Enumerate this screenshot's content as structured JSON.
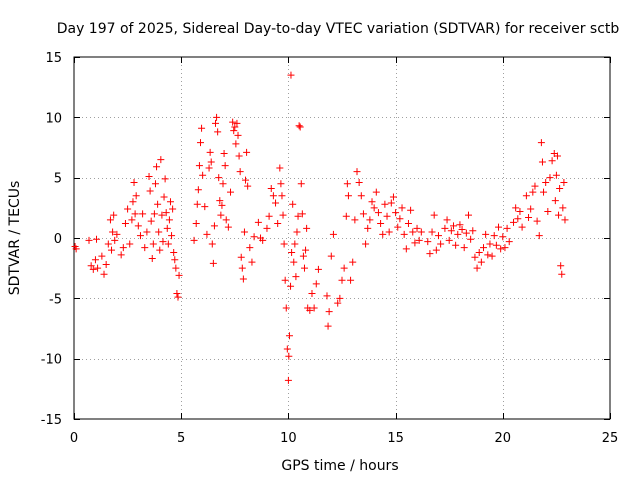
{
  "chart_data": {
    "type": "scatter",
    "title": "Day 197 of 2025, Sidereal Day-to-day VTEC variation (SDTVAR) for receiver sctb",
    "xlabel": "GPS time / hours",
    "ylabel": "SDTVAR / TECUs",
    "xlim": [
      0,
      25
    ],
    "ylim": [
      -15,
      15
    ],
    "x_ticks": [
      0,
      5,
      10,
      15,
      20,
      25
    ],
    "y_ticks": [
      -15,
      -10,
      -5,
      0,
      5,
      10,
      15
    ],
    "x_tick_labels": [
      "0",
      "5",
      "10",
      "15",
      "20",
      "25"
    ],
    "y_tick_labels": [
      "-15",
      "-10",
      "-5",
      "0",
      "5",
      "10",
      "15"
    ],
    "grid": true,
    "marker": "+",
    "color": "#ff0000",
    "series": [
      {
        "name": "SDTVAR",
        "points": [
          [
            0.05,
            -0.7
          ],
          [
            0.1,
            -0.9
          ],
          [
            0.7,
            -0.2
          ],
          [
            0.8,
            -2.3
          ],
          [
            0.9,
            -2.6
          ],
          [
            1.0,
            -1.8
          ],
          [
            1.05,
            -0.1
          ],
          [
            1.1,
            -2.5
          ],
          [
            1.3,
            -1.5
          ],
          [
            1.4,
            -3.0
          ],
          [
            1.5,
            -2.2
          ],
          [
            1.6,
            -0.5
          ],
          [
            1.7,
            1.5
          ],
          [
            1.75,
            -1.0
          ],
          [
            1.8,
            0.5
          ],
          [
            1.85,
            1.9
          ],
          [
            1.9,
            -0.2
          ],
          [
            2.0,
            0.3
          ],
          [
            2.2,
            -1.4
          ],
          [
            2.3,
            -0.8
          ],
          [
            2.4,
            1.2
          ],
          [
            2.5,
            2.4
          ],
          [
            2.6,
            -0.5
          ],
          [
            2.7,
            1.5
          ],
          [
            2.75,
            3.0
          ],
          [
            2.8,
            4.6
          ],
          [
            2.85,
            2.0
          ],
          [
            2.9,
            3.5
          ],
          [
            3.0,
            1.0
          ],
          [
            3.1,
            0.2
          ],
          [
            3.2,
            2.0
          ],
          [
            3.3,
            -0.8
          ],
          [
            3.4,
            0.5
          ],
          [
            3.5,
            5.1
          ],
          [
            3.55,
            3.9
          ],
          [
            3.6,
            1.4
          ],
          [
            3.65,
            -1.7
          ],
          [
            3.7,
            -0.5
          ],
          [
            3.75,
            2.0
          ],
          [
            3.8,
            4.5
          ],
          [
            3.85,
            5.9
          ],
          [
            3.9,
            2.8
          ],
          [
            3.95,
            0.5
          ],
          [
            4.0,
            -1.0
          ],
          [
            4.05,
            6.5
          ],
          [
            4.1,
            1.9
          ],
          [
            4.15,
            -0.3
          ],
          [
            4.2,
            3.4
          ],
          [
            4.25,
            4.9
          ],
          [
            4.3,
            2.1
          ],
          [
            4.35,
            0.8
          ],
          [
            4.4,
            -0.5
          ],
          [
            4.45,
            1.5
          ],
          [
            4.5,
            3.0
          ],
          [
            4.55,
            0.2
          ],
          [
            4.6,
            2.4
          ],
          [
            4.65,
            -1.2
          ],
          [
            4.7,
            -1.8
          ],
          [
            4.75,
            -2.5
          ],
          [
            4.8,
            -4.6
          ],
          [
            4.85,
            -4.9
          ],
          [
            4.9,
            -3.1
          ],
          [
            5.6,
            -0.2
          ],
          [
            5.7,
            1.2
          ],
          [
            5.75,
            2.8
          ],
          [
            5.8,
            4.0
          ],
          [
            5.85,
            6.0
          ],
          [
            5.9,
            7.9
          ],
          [
            5.95,
            9.1
          ],
          [
            6.0,
            5.2
          ],
          [
            6.1,
            2.6
          ],
          [
            6.2,
            0.3
          ],
          [
            6.3,
            5.8
          ],
          [
            6.35,
            7.1
          ],
          [
            6.4,
            6.3
          ],
          [
            6.45,
            -0.5
          ],
          [
            6.5,
            -2.1
          ],
          [
            6.55,
            1.0
          ],
          [
            6.6,
            9.5
          ],
          [
            6.65,
            10.0
          ],
          [
            6.7,
            8.8
          ],
          [
            6.75,
            5.0
          ],
          [
            6.8,
            3.1
          ],
          [
            6.85,
            1.9
          ],
          [
            6.9,
            2.7
          ],
          [
            6.95,
            4.5
          ],
          [
            7.0,
            7.0
          ],
          [
            7.05,
            6.0
          ],
          [
            7.1,
            1.5
          ],
          [
            7.2,
            0.9
          ],
          [
            7.3,
            3.8
          ],
          [
            7.4,
            9.6
          ],
          [
            7.45,
            8.9
          ],
          [
            7.5,
            9.2
          ],
          [
            7.55,
            7.8
          ],
          [
            7.6,
            9.5
          ],
          [
            7.65,
            8.5
          ],
          [
            7.7,
            6.8
          ],
          [
            7.75,
            5.5
          ],
          [
            7.8,
            -1.6
          ],
          [
            7.85,
            -2.5
          ],
          [
            7.9,
            -3.4
          ],
          [
            7.95,
            0.5
          ],
          [
            8.0,
            4.8
          ],
          [
            8.05,
            7.1
          ],
          [
            8.1,
            4.3
          ],
          [
            8.2,
            -0.8
          ],
          [
            8.3,
            -2.0
          ],
          [
            8.4,
            0.1
          ],
          [
            8.6,
            1.3
          ],
          [
            8.7,
            0.0
          ],
          [
            8.8,
            -0.2
          ],
          [
            9.0,
            0.8
          ],
          [
            9.1,
            1.8
          ],
          [
            9.2,
            4.1
          ],
          [
            9.3,
            3.5
          ],
          [
            9.4,
            2.9
          ],
          [
            9.5,
            1.2
          ],
          [
            9.6,
            5.8
          ],
          [
            9.65,
            4.5
          ],
          [
            9.7,
            3.5
          ],
          [
            9.75,
            1.9
          ],
          [
            9.8,
            -0.5
          ],
          [
            9.85,
            -3.5
          ],
          [
            9.9,
            -5.8
          ],
          [
            9.95,
            -9.2
          ],
          [
            10.0,
            -11.8
          ],
          [
            10.02,
            -9.8
          ],
          [
            10.05,
            -8.1
          ],
          [
            10.1,
            -4.0
          ],
          [
            10.12,
            13.5
          ],
          [
            10.15,
            -1.2
          ],
          [
            10.2,
            2.8
          ],
          [
            10.25,
            -2.0
          ],
          [
            10.3,
            -0.5
          ],
          [
            10.35,
            -3.2
          ],
          [
            10.4,
            0.5
          ],
          [
            10.45,
            1.8
          ],
          [
            10.5,
            9.3
          ],
          [
            10.55,
            9.2
          ],
          [
            10.6,
            4.5
          ],
          [
            10.65,
            2.0
          ],
          [
            10.7,
            -1.5
          ],
          [
            10.75,
            -2.5
          ],
          [
            10.8,
            -1.0
          ],
          [
            10.85,
            0.8
          ],
          [
            10.9,
            -5.8
          ],
          [
            11.0,
            -6.0
          ],
          [
            11.1,
            -4.6
          ],
          [
            11.2,
            -5.8
          ],
          [
            11.3,
            -3.8
          ],
          [
            11.4,
            -2.6
          ],
          [
            11.8,
            -4.8
          ],
          [
            11.85,
            -7.3
          ],
          [
            11.9,
            -6.1
          ],
          [
            12.0,
            -1.5
          ],
          [
            12.1,
            0.3
          ],
          [
            12.3,
            -5.4
          ],
          [
            12.4,
            -5.0
          ],
          [
            12.5,
            -3.5
          ],
          [
            12.6,
            -2.5
          ],
          [
            12.7,
            1.8
          ],
          [
            12.75,
            4.5
          ],
          [
            12.8,
            3.5
          ],
          [
            12.9,
            -3.5
          ],
          [
            13.0,
            -2.0
          ],
          [
            13.1,
            1.5
          ],
          [
            13.2,
            5.5
          ],
          [
            13.3,
            4.6
          ],
          [
            13.4,
            3.5
          ],
          [
            13.5,
            2.0
          ],
          [
            13.6,
            -0.5
          ],
          [
            13.7,
            0.8
          ],
          [
            13.8,
            1.5
          ],
          [
            13.9,
            3.0
          ],
          [
            14.0,
            2.5
          ],
          [
            14.1,
            3.8
          ],
          [
            14.2,
            2.1
          ],
          [
            14.3,
            1.2
          ],
          [
            14.4,
            0.3
          ],
          [
            14.5,
            2.8
          ],
          [
            14.6,
            1.8
          ],
          [
            14.7,
            0.5
          ],
          [
            14.8,
            2.9
          ],
          [
            14.9,
            3.4
          ],
          [
            15.0,
            2.1
          ],
          [
            15.1,
            0.9
          ],
          [
            15.2,
            1.6
          ],
          [
            15.3,
            2.5
          ],
          [
            15.4,
            0.3
          ],
          [
            15.5,
            -0.9
          ],
          [
            15.6,
            1.2
          ],
          [
            15.7,
            2.3
          ],
          [
            15.8,
            0.5
          ],
          [
            15.9,
            -0.4
          ],
          [
            16.0,
            0.8
          ],
          [
            16.1,
            -0.2
          ],
          [
            16.2,
            0.5
          ],
          [
            16.5,
            -0.3
          ],
          [
            16.6,
            -1.3
          ],
          [
            16.7,
            0.5
          ],
          [
            16.8,
            1.9
          ],
          [
            16.9,
            -1.0
          ],
          [
            17.0,
            0.2
          ],
          [
            17.1,
            -0.5
          ],
          [
            17.3,
            0.8
          ],
          [
            17.4,
            1.5
          ],
          [
            17.5,
            -0.2
          ],
          [
            17.6,
            0.6
          ],
          [
            17.7,
            1.0
          ],
          [
            17.8,
            -0.6
          ],
          [
            17.9,
            0.3
          ],
          [
            18.0,
            1.1
          ],
          [
            18.1,
            0.7
          ],
          [
            18.2,
            -0.8
          ],
          [
            18.3,
            0.4
          ],
          [
            18.4,
            1.9
          ],
          [
            18.5,
            -0.1
          ],
          [
            18.6,
            0.6
          ],
          [
            18.7,
            -1.6
          ],
          [
            18.8,
            -2.5
          ],
          [
            18.9,
            -1.2
          ],
          [
            19.0,
            -2.0
          ],
          [
            19.1,
            -0.8
          ],
          [
            19.2,
            0.3
          ],
          [
            19.3,
            -1.4
          ],
          [
            19.4,
            -0.5
          ],
          [
            19.5,
            -1.5
          ],
          [
            19.6,
            0.2
          ],
          [
            19.7,
            -0.6
          ],
          [
            19.8,
            0.9
          ],
          [
            19.9,
            -0.9
          ],
          [
            20.0,
            0.1
          ],
          [
            20.1,
            -0.8
          ],
          [
            20.2,
            0.8
          ],
          [
            20.3,
            -0.3
          ],
          [
            20.5,
            1.3
          ],
          [
            20.6,
            2.5
          ],
          [
            20.7,
            1.6
          ],
          [
            20.8,
            2.2
          ],
          [
            20.9,
            0.9
          ],
          [
            21.1,
            3.5
          ],
          [
            21.2,
            1.7
          ],
          [
            21.3,
            2.4
          ],
          [
            21.4,
            3.8
          ],
          [
            21.5,
            4.3
          ],
          [
            21.6,
            1.4
          ],
          [
            21.7,
            0.2
          ],
          [
            21.8,
            7.9
          ],
          [
            21.85,
            6.3
          ],
          [
            21.9,
            3.8
          ],
          [
            22.0,
            4.6
          ],
          [
            22.1,
            2.2
          ],
          [
            22.2,
            5.0
          ],
          [
            22.3,
            6.4
          ],
          [
            22.4,
            7.0
          ],
          [
            22.45,
            3.1
          ],
          [
            22.5,
            5.2
          ],
          [
            22.55,
            6.8
          ],
          [
            22.6,
            1.9
          ],
          [
            22.65,
            4.1
          ],
          [
            22.7,
            -2.3
          ],
          [
            22.75,
            -3.0
          ],
          [
            22.8,
            2.5
          ],
          [
            22.85,
            4.6
          ],
          [
            22.9,
            1.5
          ]
        ]
      }
    ]
  }
}
